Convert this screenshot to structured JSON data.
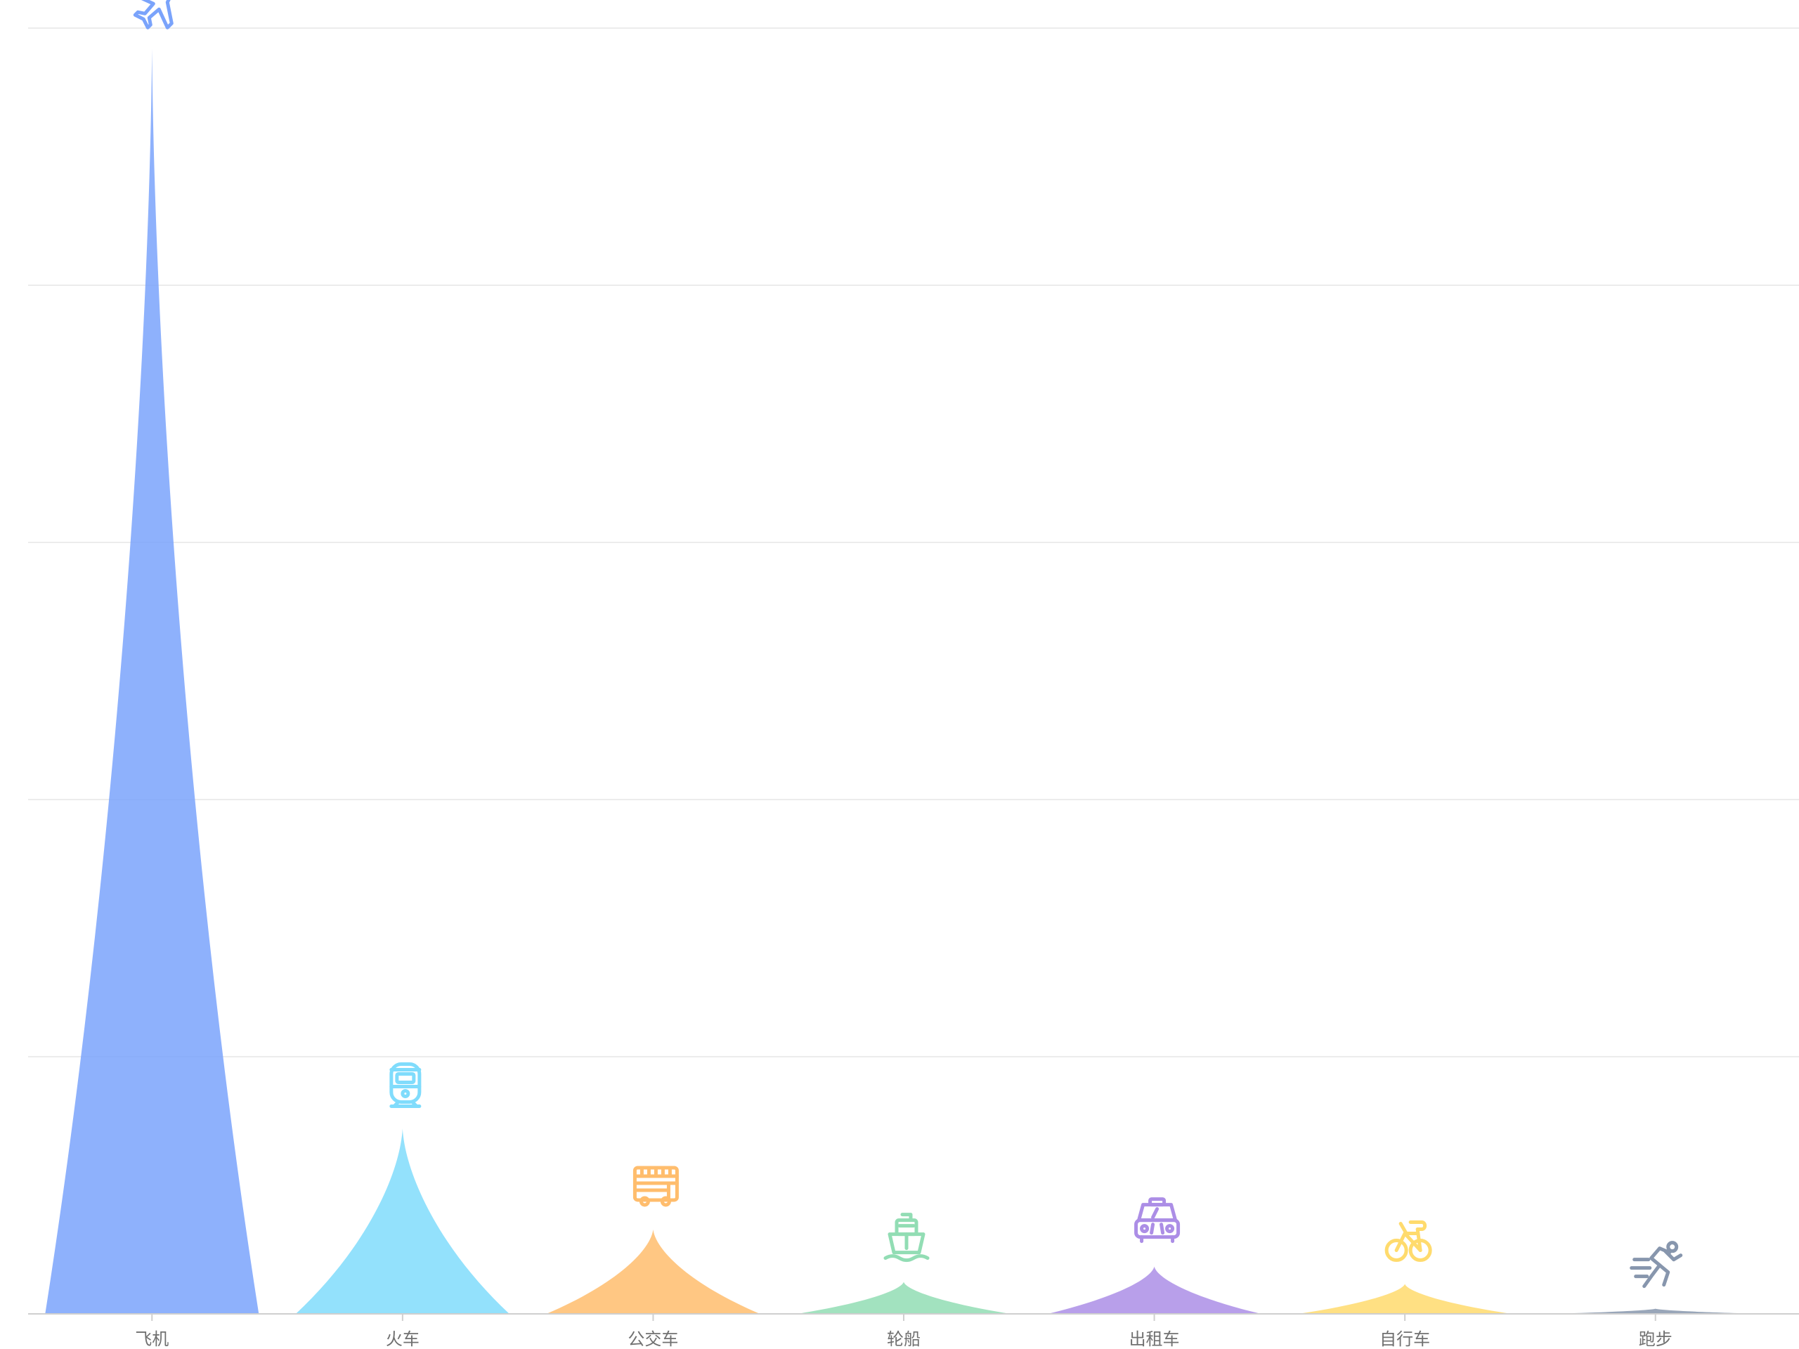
{
  "chart_data": {
    "type": "bar",
    "categories": [
      "飞机",
      "火车",
      "公交车",
      "轮船",
      "出租车",
      "自行车",
      "跑步"
    ],
    "values": [
      123,
      18,
      8.2,
      3.1,
      4.6,
      2.9,
      0.5
    ],
    "icons": [
      "airplane-icon",
      "train-icon",
      "bus-icon",
      "ship-icon",
      "taxi-icon",
      "bicycle-icon",
      "running-icon"
    ],
    "colors": [
      "#7aa3fb",
      "#80dcfc",
      "#ffbd6d",
      "#92ddb4",
      "#ac8ee6",
      "#ffdb6d",
      "#8796ad"
    ],
    "ylim": [
      0,
      125
    ],
    "grid": true,
    "title": "",
    "xlabel": "",
    "ylabel": ""
  }
}
